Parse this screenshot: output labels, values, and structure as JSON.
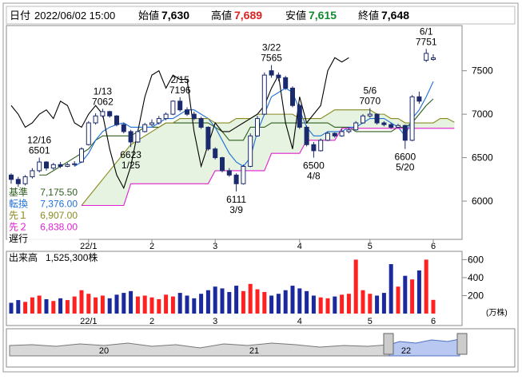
{
  "header": {
    "date_label": "日付",
    "date": "2022/06/02 15:00",
    "open_label": "始値",
    "open": "7,630",
    "high_label": "高値",
    "high": "7,689",
    "low_label": "安値",
    "low": "7,615",
    "close_label": "終値",
    "close": "7,648"
  },
  "chart_data": [
    {
      "type": "candlestick",
      "ylim": [
        5560,
        8020
      ],
      "yticks": [
        6000,
        6500,
        7000,
        7500
      ],
      "month_starts": [
        {
          "index": 11,
          "label": "22/1"
        },
        {
          "index": 20,
          "label": "2"
        },
        {
          "index": 29,
          "label": "3"
        },
        {
          "index": 41,
          "label": "4"
        },
        {
          "index": 51,
          "label": "5"
        },
        {
          "index": 60,
          "label": "6"
        }
      ],
      "candles": [
        [
          6300,
          6320,
          6200,
          6250
        ],
        [
          6250,
          6280,
          6150,
          6200
        ],
        [
          6200,
          6300,
          6180,
          6280
        ],
        [
          6280,
          6380,
          6260,
          6350
        ],
        [
          6350,
          6501,
          6330,
          6450
        ],
        [
          6450,
          6460,
          6350,
          6380
        ],
        [
          6380,
          6440,
          6360,
          6420
        ],
        [
          6420,
          6450,
          6380,
          6400
        ],
        [
          6400,
          6440,
          6390,
          6420
        ],
        [
          6420,
          6460,
          6400,
          6430
        ],
        [
          6450,
          6620,
          6440,
          6600
        ],
        [
          6650,
          6920,
          6640,
          6900
        ],
        [
          6900,
          7010,
          6880,
          6980
        ],
        [
          6980,
          7062,
          6960,
          7030
        ],
        [
          7030,
          7040,
          6960,
          6980
        ],
        [
          6980,
          6990,
          6860,
          6880
        ],
        [
          6880,
          6900,
          6780,
          6800
        ],
        [
          6800,
          6820,
          6623,
          6680
        ],
        [
          6680,
          6820,
          6670,
          6800
        ],
        [
          6800,
          6900,
          6790,
          6880
        ],
        [
          6880,
          6940,
          6860,
          6900
        ],
        [
          6900,
          6980,
          6880,
          6950
        ],
        [
          6950,
          7020,
          6930,
          7000
        ],
        [
          7000,
          7160,
          6990,
          7150
        ],
        [
          7150,
          7196,
          7030,
          7050
        ],
        [
          7050,
          7080,
          6980,
          7000
        ],
        [
          7000,
          7030,
          6930,
          6950
        ],
        [
          6950,
          6970,
          6830,
          6850
        ],
        [
          6850,
          6860,
          6580,
          6600
        ],
        [
          6600,
          6620,
          6480,
          6500
        ],
        [
          6500,
          6510,
          6330,
          6350
        ],
        [
          6350,
          6380,
          6280,
          6300
        ],
        [
          6300,
          6320,
          6111,
          6200
        ],
        [
          6200,
          6420,
          6190,
          6400
        ],
        [
          6400,
          6780,
          6390,
          6750
        ],
        [
          6750,
          6980,
          6740,
          6950
        ],
        [
          7000,
          7480,
          6990,
          7450
        ],
        [
          7500,
          7565,
          7420,
          7450
        ],
        [
          7450,
          7480,
          7380,
          7420
        ],
        [
          7420,
          7440,
          7280,
          7300
        ],
        [
          7300,
          7320,
          7080,
          7100
        ],
        [
          7100,
          7120,
          6830,
          6850
        ],
        [
          6850,
          6870,
          6630,
          6650
        ],
        [
          6650,
          6680,
          6500,
          6580
        ],
        [
          6580,
          6720,
          6570,
          6700
        ],
        [
          6700,
          6800,
          6690,
          6780
        ],
        [
          6780,
          6790,
          6730,
          6750
        ],
        [
          6750,
          6830,
          6740,
          6800
        ],
        [
          6800,
          6850,
          6780,
          6820
        ],
        [
          6820,
          6920,
          6810,
          6900
        ],
        [
          6900,
          7000,
          6890,
          6980
        ],
        [
          6980,
          7070,
          6960,
          7000
        ],
        [
          7000,
          7010,
          6880,
          6900
        ],
        [
          6900,
          6920,
          6860,
          6880
        ],
        [
          6880,
          6900,
          6830,
          6850
        ],
        [
          6850,
          6890,
          6840,
          6870
        ],
        [
          6870,
          6880,
          6600,
          6700
        ],
        [
          6700,
          7220,
          6690,
          7200
        ],
        [
          7200,
          7260,
          7120,
          7150
        ],
        [
          7620,
          7751,
          7600,
          7700
        ],
        [
          7630,
          7689,
          7615,
          7648
        ]
      ],
      "up_color": "#ffffff",
      "down_color": "#1a2a6c",
      "annotations": [
        {
          "date": "12/16",
          "value": 6501
        },
        {
          "date": "1/13",
          "value": 7062
        },
        {
          "date": "1/25",
          "value": 6623
        },
        {
          "date": "2/15",
          "value": 7196
        },
        {
          "date": "3/9",
          "value": 6111
        },
        {
          "date": "3/22",
          "value": 7565
        },
        {
          "date": "4/8",
          "value": 6500
        },
        {
          "date": "5/6",
          "value": 7070
        },
        {
          "date": "5/20",
          "value": 6600
        },
        {
          "date": "6/1",
          "value": 7751
        }
      ],
      "series": [
        {
          "name": "基準",
          "color": "#2e5e1e",
          "value_label": "7,175.50",
          "values": [
            null,
            null,
            null,
            null,
            6300,
            6300,
            6350,
            6400,
            6450,
            6500,
            6550,
            6600,
            6700,
            6750,
            6750,
            6750,
            6750,
            6750,
            6800,
            6850,
            6850,
            6850,
            6900,
            6900,
            6900,
            6900,
            6900,
            6900,
            6900,
            6850,
            6800,
            6700,
            6700,
            6700,
            6850,
            6850,
            6850,
            6900,
            6900,
            6900,
            6900,
            6900,
            6900,
            6900,
            6900,
            6900,
            6850,
            6850,
            6850,
            6800,
            6800,
            6800,
            6800,
            6800,
            6800,
            6850,
            6850,
            6900,
            7000,
            7100,
            7175.5
          ]
        },
        {
          "name": "転換",
          "color": "#1f6fd6",
          "value_label": "7,376.00",
          "values": [
            null,
            null,
            null,
            null,
            null,
            null,
            null,
            null,
            null,
            6400,
            6450,
            6550,
            6700,
            6800,
            6850,
            6880,
            6900,
            6850,
            6850,
            6850,
            6850,
            6900,
            6950,
            6950,
            7000,
            7050,
            7050,
            7000,
            6950,
            6850,
            6700,
            6550,
            6450,
            6400,
            6500,
            6800,
            7000,
            7200,
            7250,
            7300,
            7250,
            7050,
            6850,
            6750,
            6750,
            6800,
            6800,
            6800,
            6850,
            6850,
            6900,
            6950,
            6950,
            6950,
            6900,
            6850,
            6750,
            6950,
            7050,
            7200,
            7376
          ]
        },
        {
          "name": "先１",
          "color": "#8a8a20",
          "value_label": "6,907.00",
          "values": [
            null,
            null,
            null,
            null,
            null,
            null,
            null,
            null,
            null,
            null,
            5950,
            6050,
            6150,
            6250,
            6350,
            6450,
            6550,
            6650,
            6700,
            6750,
            6800,
            6850,
            6900,
            6900,
            6950,
            6950,
            6950,
            6950,
            6950,
            6900,
            6900,
            6900,
            6950,
            6950,
            6950,
            7000,
            7000,
            7000,
            7000,
            7000,
            7000,
            6950,
            6950,
            6950,
            6950,
            7000,
            7050,
            7050,
            7050,
            7050,
            7050,
            7050,
            7000,
            7000,
            6950,
            6950,
            6900,
            6900,
            6900,
            6900,
            6900,
            6950,
            6950,
            6907
          ]
        },
        {
          "name": "先２",
          "color": "#e020d0",
          "value_label": "6,838.00",
          "values": [
            null,
            null,
            null,
            null,
            null,
            null,
            null,
            null,
            null,
            null,
            5950,
            5950,
            5950,
            5950,
            5950,
            5950,
            5950,
            6200,
            6200,
            6200,
            6200,
            6200,
            6200,
            6200,
            6200,
            6200,
            6200,
            6200,
            6200,
            6350,
            6350,
            6350,
            6350,
            6350,
            6350,
            6350,
            6350,
            6550,
            6550,
            6550,
            6550,
            6550,
            6700,
            6700,
            6700,
            6700,
            6700,
            6838,
            6838,
            6838,
            6838,
            6838,
            6838,
            6838,
            6838,
            6838,
            6838,
            6838,
            6838,
            6838,
            6838,
            6838,
            6838,
            6838
          ]
        },
        {
          "name": "遅行",
          "color": "#000000",
          "values": [
            7100,
            7000,
            6850,
            6900,
            7000,
            7050,
            6950,
            7150,
            7100,
            6900,
            6850,
            7000,
            7100,
            7000,
            6600,
            6300,
            6150,
            6400,
            6800,
            7200,
            7450,
            7500,
            7300,
            7450,
            7400,
            7400,
            6800,
            6400,
            6650,
            6900,
            6800,
            6800,
            6850,
            6900,
            6950,
            7000,
            7100,
            7300,
            7450,
            6900,
            6600,
            7200,
            6900,
            7000,
            7100,
            7500,
            7650,
            7600,
            7650
          ]
        }
      ]
    },
    {
      "type": "volume",
      "label": "出来高",
      "current": "1,525,300株",
      "unit": "(万株)",
      "ylim": [
        0,
        710
      ],
      "yticks": [
        200,
        400,
        600
      ],
      "up_color": "#ff2020",
      "down_color": "#1a2a9c",
      "values": [
        120,
        150,
        130,
        180,
        200,
        160,
        140,
        170,
        150,
        190,
        260,
        220,
        180,
        200,
        170,
        210,
        230,
        250,
        190,
        200,
        180,
        160,
        210,
        190,
        230,
        200,
        170,
        220,
        260,
        300,
        280,
        240,
        310,
        250,
        330,
        270,
        240,
        200,
        220,
        260,
        310,
        280,
        250,
        200,
        180,
        170,
        190,
        210,
        220,
        600,
        260,
        220,
        200,
        230,
        550,
        300,
        420,
        380,
        480,
        600,
        152.53
      ]
    },
    {
      "type": "navigator",
      "labels": [
        "20",
        "21",
        "22"
      ]
    }
  ]
}
